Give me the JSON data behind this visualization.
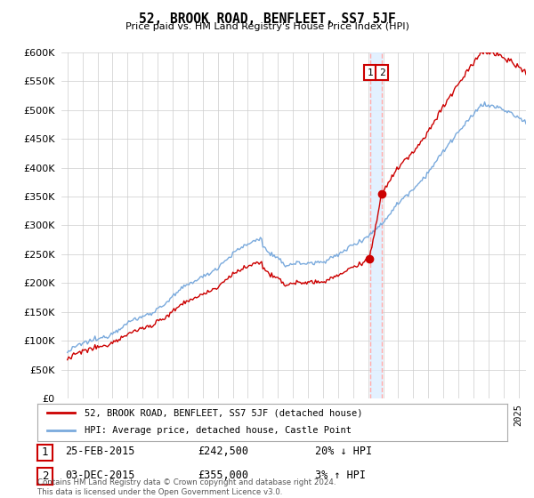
{
  "title": "52, BROOK ROAD, BENFLEET, SS7 5JF",
  "subtitle": "Price paid vs. HM Land Registry's House Price Index (HPI)",
  "ylim": [
    0,
    600000
  ],
  "yticks": [
    0,
    50000,
    100000,
    150000,
    200000,
    250000,
    300000,
    350000,
    400000,
    450000,
    500000,
    550000,
    600000
  ],
  "sale1_year": 2015.12,
  "sale1_price": 242500,
  "sale2_year": 2015.92,
  "sale2_price": 355000,
  "legend_line1": "52, BROOK ROAD, BENFLEET, SS7 5JF (detached house)",
  "legend_line2": "HPI: Average price, detached house, Castle Point",
  "annotation1_date": "25-FEB-2015",
  "annotation1_price": "£242,500",
  "annotation1_hpi": "20% ↓ HPI",
  "annotation2_date": "03-DEC-2015",
  "annotation2_price": "£355,000",
  "annotation2_hpi": "3% ↑ HPI",
  "footer": "Contains HM Land Registry data © Crown copyright and database right 2024.\nThis data is licensed under the Open Government Licence v3.0.",
  "line_color_red": "#cc0000",
  "line_color_blue": "#7aaadd",
  "vline_color": "#ffcccc",
  "background_color": "#ffffff",
  "grid_color": "#cccccc",
  "xlim_left": 1994.6,
  "xlim_right": 2025.5
}
